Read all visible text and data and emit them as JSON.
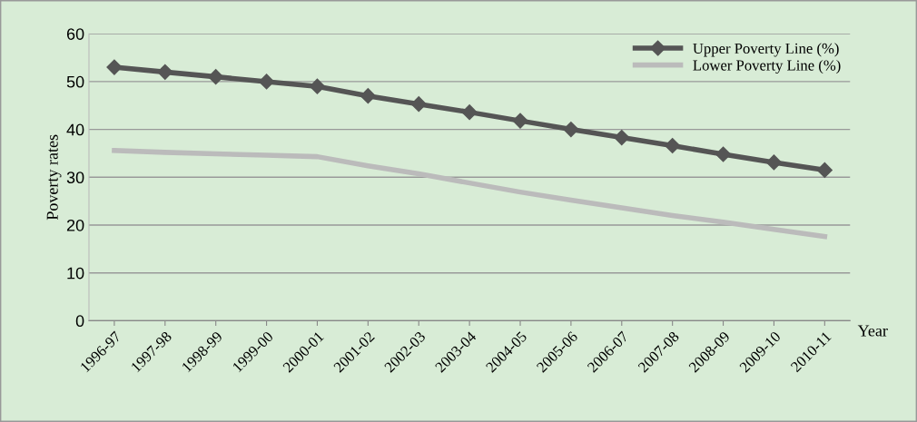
{
  "chart_data": {
    "type": "line",
    "xlabel": "Year",
    "ylabel": "Poverty rates",
    "categories": [
      "1996-97",
      "1997-98",
      "1998-99",
      "1999-00",
      "2000-01",
      "2001-02",
      "2002-03",
      "2003-04",
      "2004-05",
      "2005-06",
      "2006-07",
      "2007-08",
      "2008-09",
      "2009-10",
      "2010-11"
    ],
    "series": [
      {
        "name": "Upper Poverty Line (%)",
        "color": "#555555",
        "marker": "diamond",
        "values": [
          53,
          52,
          51,
          50,
          49,
          47,
          45.3,
          43.6,
          41.8,
          40,
          38.3,
          36.6,
          34.8,
          33.1,
          31.5
        ]
      },
      {
        "name": "Lower Poverty Line (%)",
        "color": "#bbbbbb",
        "marker": "none",
        "values": [
          35.6,
          35.2,
          34.9,
          34.6,
          34.3,
          32.4,
          30.7,
          28.8,
          26.9,
          25.2,
          23.6,
          22,
          20.6,
          19.1,
          17.6
        ]
      }
    ],
    "ylim": [
      0,
      60
    ],
    "yticks": [
      0,
      10,
      20,
      30,
      40,
      50,
      60
    ],
    "grid": "y",
    "legend": "top right"
  }
}
